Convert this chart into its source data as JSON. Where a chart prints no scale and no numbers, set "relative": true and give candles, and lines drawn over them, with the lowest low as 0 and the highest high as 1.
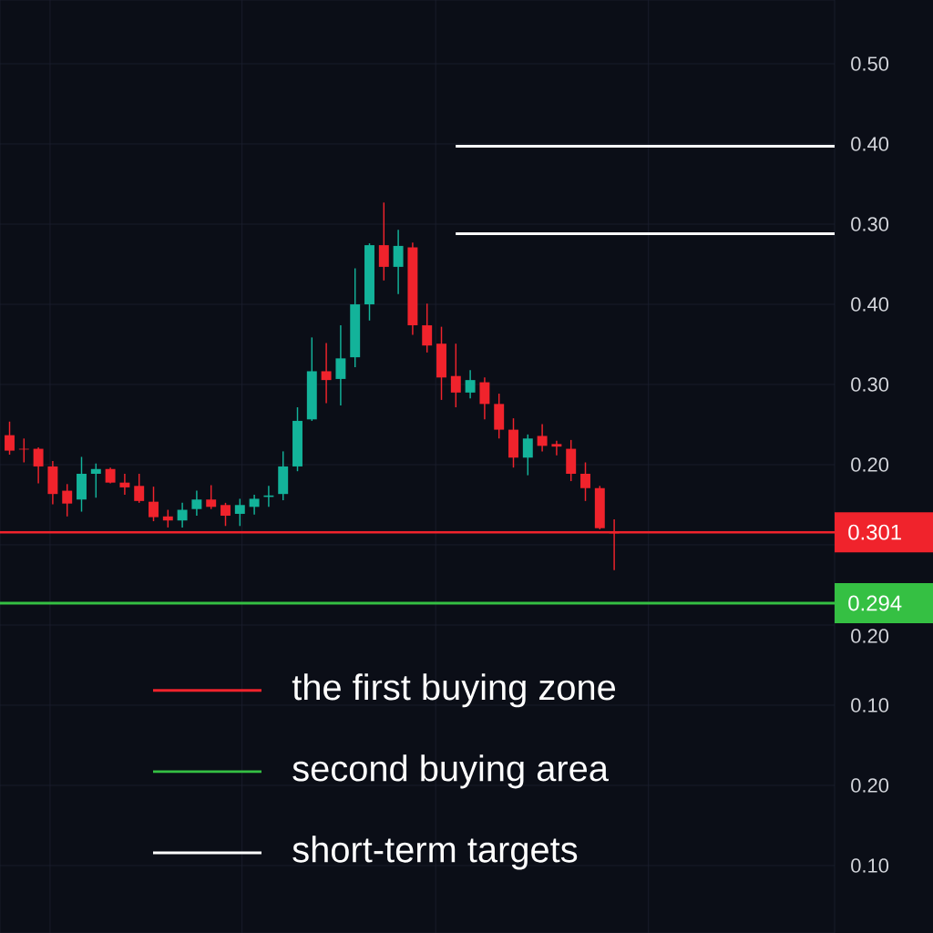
{
  "chart_data": {
    "type": "candlestick",
    "relative": true,
    "categories": [
      null,
      null,
      null,
      null,
      null,
      null,
      null,
      null,
      null,
      null,
      null,
      null,
      null,
      null,
      null,
      null,
      null,
      null,
      null,
      null,
      null,
      null,
      null,
      null,
      null,
      null,
      null,
      null,
      null,
      null,
      null,
      null,
      null,
      null,
      null,
      null,
      null,
      null,
      null,
      null,
      null,
      null,
      null
    ],
    "ohlc": [
      [
        0.367,
        0.404,
        0.314,
        0.325
      ],
      [
        0.33,
        0.358,
        0.293,
        0.328
      ],
      [
        0.33,
        0.334,
        0.236,
        0.282
      ],
      [
        0.282,
        0.297,
        0.179,
        0.207
      ],
      [
        0.216,
        0.234,
        0.146,
        0.181
      ],
      [
        0.192,
        0.308,
        0.159,
        0.262
      ],
      [
        0.262,
        0.29,
        0.197,
        0.275
      ],
      [
        0.275,
        0.279,
        0.236,
        0.238
      ],
      [
        0.238,
        0.262,
        0.205,
        0.225
      ],
      [
        0.229,
        0.262,
        0.183,
        0.188
      ],
      [
        0.186,
        0.227,
        0.133,
        0.144
      ],
      [
        0.146,
        0.164,
        0.116,
        0.135
      ],
      [
        0.135,
        0.183,
        0.116,
        0.164
      ],
      [
        0.166,
        0.216,
        0.148,
        0.192
      ],
      [
        0.192,
        0.231,
        0.166,
        0.172
      ],
      [
        0.177,
        0.183,
        0.12,
        0.148
      ],
      [
        0.153,
        0.194,
        0.12,
        0.177
      ],
      [
        0.172,
        0.205,
        0.151,
        0.194
      ],
      [
        0.199,
        0.229,
        0.172,
        0.203
      ],
      [
        0.207,
        0.323,
        0.19,
        0.282
      ],
      [
        0.282,
        0.443,
        0.269,
        0.406
      ],
      [
        0.41,
        0.633,
        0.406,
        0.541
      ],
      [
        0.541,
        0.618,
        0.454,
        0.517
      ],
      [
        0.52,
        0.666,
        0.448,
        0.576
      ],
      [
        0.579,
        0.821,
        0.552,
        0.723
      ],
      [
        0.723,
        0.889,
        0.679,
        0.884
      ],
      [
        0.884,
        1.0,
        0.788,
        0.825
      ],
      [
        0.825,
        0.926,
        0.751,
        0.882
      ],
      [
        0.878,
        0.891,
        0.64,
        0.666
      ],
      [
        0.666,
        0.725,
        0.592,
        0.611
      ],
      [
        0.616,
        0.662,
        0.463,
        0.524
      ],
      [
        0.528,
        0.616,
        0.443,
        0.483
      ],
      [
        0.483,
        0.544,
        0.467,
        0.517
      ],
      [
        0.511,
        0.524,
        0.41,
        0.452
      ],
      [
        0.452,
        0.48,
        0.358,
        0.382
      ],
      [
        0.382,
        0.413,
        0.279,
        0.306
      ],
      [
        0.306,
        0.369,
        0.258,
        0.358
      ],
      [
        0.365,
        0.397,
        0.323,
        0.338
      ],
      [
        0.343,
        0.352,
        0.312,
        0.336
      ],
      [
        0.33,
        0.354,
        0.242,
        0.262
      ],
      [
        0.262,
        0.293,
        0.188,
        0.223
      ],
      [
        0.223,
        0.229,
        0.111,
        0.114
      ],
      [
        0.105,
        0.138,
        0.0,
        0.1
      ]
    ],
    "colors": [
      "#f0232c",
      "#f0232c",
      "#f0232c",
      "#f0232c",
      "#f0232c",
      "#13b39a",
      "#13b39a",
      "#f0232c",
      "#f0232c",
      "#f0232c",
      "#f0232c",
      "#f0232c",
      "#13b39a",
      "#13b39a",
      "#f0232c",
      "#f0232c",
      "#13b39a",
      "#13b39a",
      "#13b39a",
      "#13b39a",
      "#13b39a",
      "#13b39a",
      "#f0232c",
      "#13b39a",
      "#13b39a",
      "#13b39a",
      "#f0232c",
      "#13b39a",
      "#f0232c",
      "#f0232c",
      "#f0232c",
      "#f0232c",
      "#13b39a",
      "#f0232c",
      "#f0232c",
      "#f0232c",
      "#13b39a",
      "#f0232c",
      "#f0232c",
      "#f0232c",
      "#f0232c",
      "#f0232c",
      "#f0232c"
    ],
    "ref_lines": [
      {
        "axis": "y",
        "value": 0.103,
        "label": "the first buying zone",
        "color": "#f0232c"
      },
      {
        "axis": "y",
        "value": -0.09,
        "label": "second buying area",
        "color": "#35c043"
      },
      {
        "axis": "y",
        "value": 1.153,
        "label": "short-term targets",
        "color": "#ffffff"
      },
      {
        "axis": "y",
        "value": 0.915,
        "color": "#ffffff"
      }
    ],
    "annotations": [
      "0.301",
      "0.294",
      "0.50",
      "0.40",
      "0.30",
      "0.40",
      "0.30",
      "0.20",
      "0.20",
      "0.10",
      "0.20",
      "0.10"
    ],
    "grid": true,
    "legend": "bottom"
  }
}
